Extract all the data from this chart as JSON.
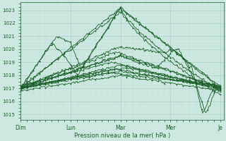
{
  "bg_color": "#cce8e0",
  "grid_color_major": "#a8cfc8",
  "grid_color_minor": "#b8ddd8",
  "line_color": "#1a5e28",
  "xlabel": "Pression niveau de la mer( hPa )",
  "xtick_labels": [
    "Dim",
    "Lun",
    "Mar",
    "Mer",
    "Je"
  ],
  "xtick_positions": [
    0,
    48,
    96,
    144,
    192
  ],
  "yticks": [
    1015,
    1016,
    1017,
    1018,
    1019,
    1020,
    1021,
    1022,
    1023
  ],
  "ylim": [
    1014.6,
    1023.6
  ],
  "xlim": [
    0,
    195
  ],
  "n": 193
}
